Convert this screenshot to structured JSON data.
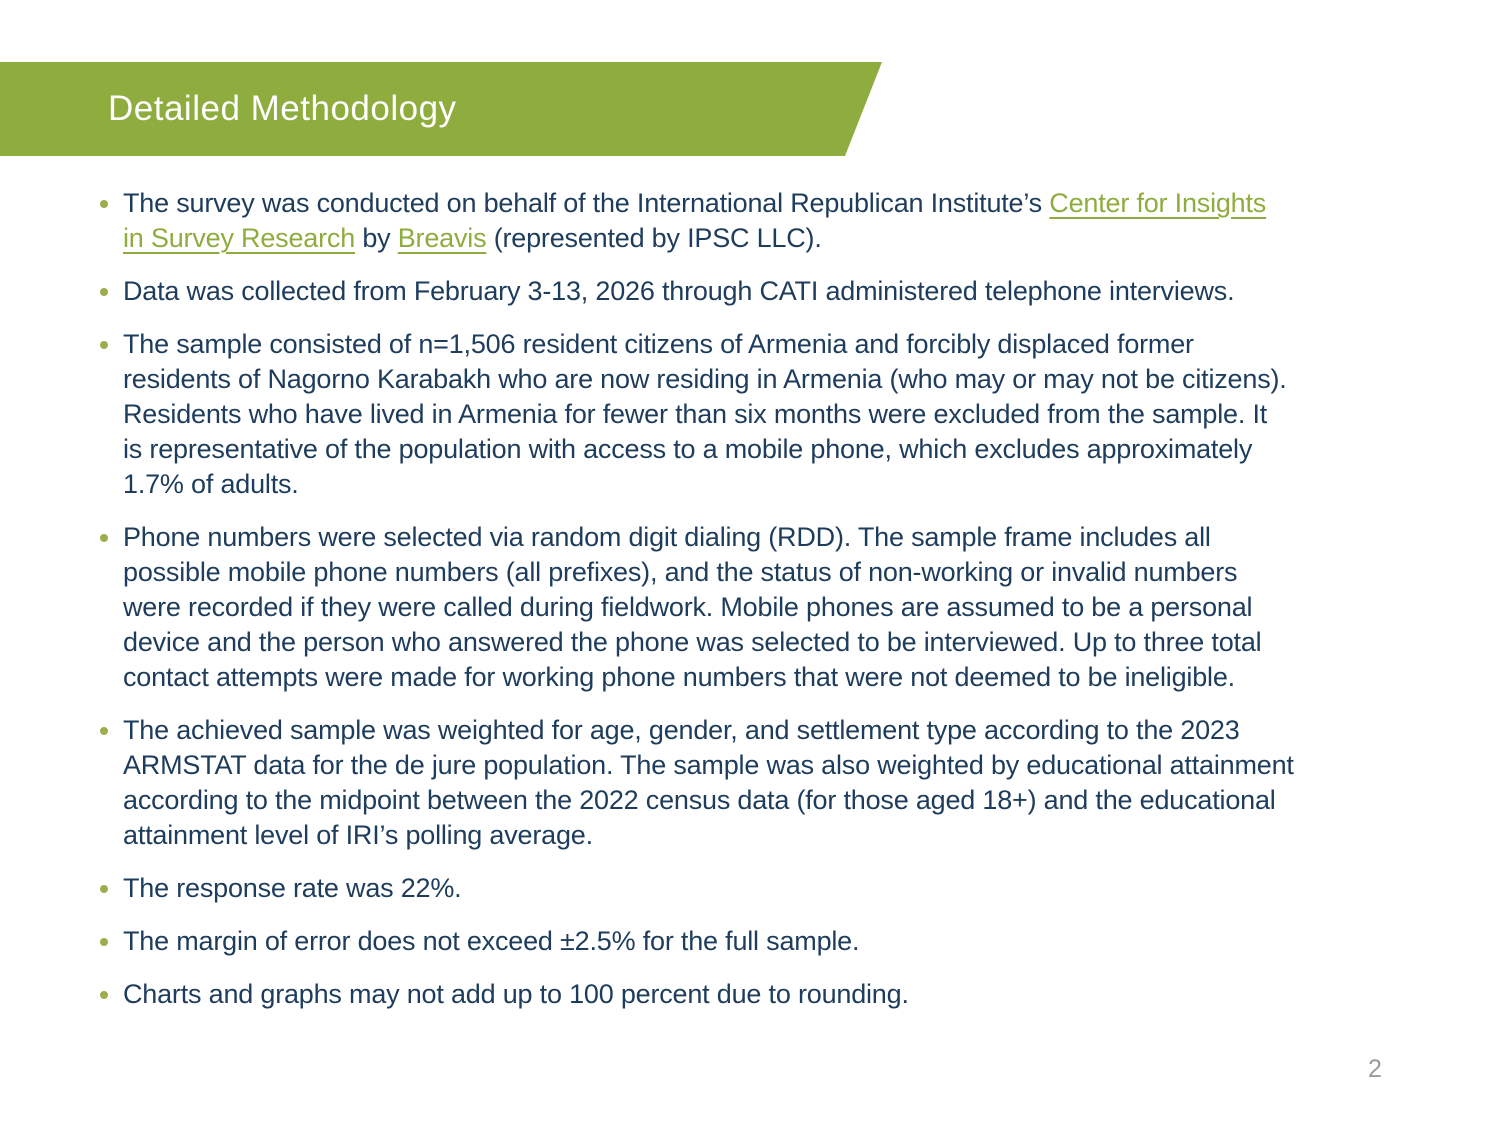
{
  "slide": {
    "title": "Detailed Methodology",
    "page_number": "2",
    "colors": {
      "banner_green": "#8FAC3F",
      "link_green": "#8FAC3F",
      "body_navy": "#1E3C5C",
      "bullet_olive": "#9CAE4E",
      "page_number_gray": "#9A9A9A"
    },
    "bullets": [
      {
        "lines": [
          [
            {
              "k": "t",
              "t": "The survey was conducted on behalf of the International Republican Institute’s "
            },
            {
              "k": "link",
              "t": "Center for Insights"
            }
          ],
          [
            {
              "k": "link",
              "t": "in Survey Research"
            },
            {
              "k": "t",
              "t": " by "
            },
            {
              "k": "link",
              "t": "Breavis"
            },
            {
              "k": "t",
              "t": " (represented by IPSC LLC)."
            }
          ]
        ]
      },
      {
        "lines": [
          [
            {
              "k": "t",
              "t": "Data was collected from February 3-13, 2026 through CATI administered telephone interviews."
            }
          ]
        ]
      },
      {
        "lines": [
          [
            {
              "k": "t",
              "t": "The sample consisted of n=1,506 resident citizens of Armenia and forcibly displaced former"
            }
          ],
          [
            {
              "k": "t",
              "t": "residents of Nagorno Karabakh who are now residing in Armenia (who may or may not be citizens)."
            }
          ],
          [
            {
              "k": "t",
              "t": "Residents who have lived in Armenia for fewer than six months were excluded from the sample. It"
            }
          ],
          [
            {
              "k": "t",
              "t": "is representative of the population with access to a mobile phone, which excludes approximately"
            }
          ],
          [
            {
              "k": "t",
              "t": "1.7% of adults."
            }
          ]
        ]
      },
      {
        "lines": [
          [
            {
              "k": "t",
              "t": "Phone numbers were selected via random digit dialing (RDD). The sample frame includes all"
            }
          ],
          [
            {
              "k": "t",
              "t": "possible mobile phone numbers (all prefixes), and the status of non-working or invalid numbers"
            }
          ],
          [
            {
              "k": "t",
              "t": "were recorded if they were called during fieldwork. Mobile phones are assumed to be a personal"
            }
          ],
          [
            {
              "k": "t",
              "t": "device and the person who answered the phone was selected to be interviewed. Up to three total"
            }
          ],
          [
            {
              "k": "t",
              "t": "contact attempts were made for working phone numbers that were not deemed to be ineligible."
            }
          ]
        ]
      },
      {
        "lines": [
          [
            {
              "k": "t",
              "t": "The achieved sample was weighted for age, gender, and settlement type according to the 2023"
            }
          ],
          [
            {
              "k": "t",
              "t": "ARMSTAT data for the de jure population. The sample was also weighted by educational attainment"
            }
          ],
          [
            {
              "k": "t",
              "t": "according to the midpoint between the 2022 census data (for those aged 18+) and the educational"
            }
          ],
          [
            {
              "k": "t",
              "t": "attainment level of IRI’s polling average."
            }
          ]
        ]
      },
      {
        "lines": [
          [
            {
              "k": "t",
              "t": "The response rate was 22%."
            }
          ]
        ]
      },
      {
        "lines": [
          [
            {
              "k": "t",
              "t": "The margin of error does not exceed ±2.5% for the full sample."
            }
          ]
        ]
      },
      {
        "lines": [
          [
            {
              "k": "t",
              "t": "Charts and graphs may not add up to 100 percent due to rounding."
            }
          ]
        ]
      }
    ]
  }
}
